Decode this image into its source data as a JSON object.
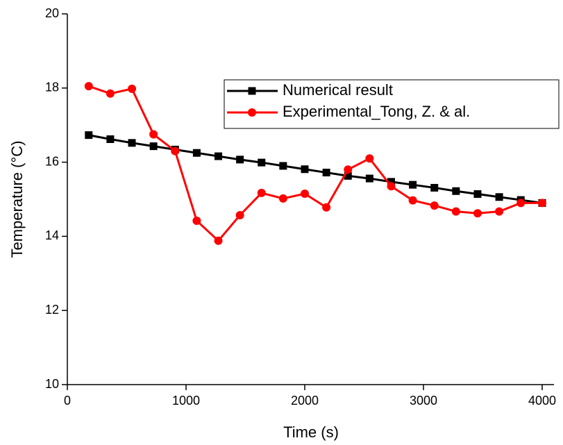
{
  "chart_data": {
    "type": "line",
    "x_label": "Time (s)",
    "y_label": "Temperature (°C)",
    "xlim": [
      0,
      4100
    ],
    "ylim": [
      10,
      20
    ],
    "xticks": [
      0,
      1000,
      2000,
      3000,
      4000
    ],
    "yticks": [
      10,
      12,
      14,
      16,
      18,
      20
    ],
    "x": [
      180,
      362,
      544,
      726,
      908,
      1090,
      1272,
      1454,
      1636,
      1818,
      2000,
      2182,
      2364,
      2546,
      2728,
      2910,
      3092,
      3274,
      3456,
      3638,
      3820,
      4000
    ],
    "series": [
      {
        "name": "Numerical result",
        "color": "#000000",
        "marker": "square",
        "values": [
          16.73,
          16.62,
          16.52,
          16.43,
          16.34,
          16.25,
          16.16,
          16.07,
          15.99,
          15.9,
          15.81,
          15.72,
          15.63,
          15.56,
          15.47,
          15.39,
          15.31,
          15.22,
          15.14,
          15.06,
          14.98,
          14.9
        ]
      },
      {
        "name": "Experimental_Tong, Z. & al.",
        "color": "#ff0000",
        "marker": "circle",
        "values": [
          18.05,
          17.85,
          17.98,
          16.75,
          16.3,
          14.42,
          13.88,
          14.57,
          15.17,
          15.02,
          15.15,
          14.78,
          15.8,
          16.1,
          15.35,
          14.97,
          14.83,
          14.67,
          14.62,
          14.67,
          14.9,
          14.9
        ]
      }
    ]
  }
}
